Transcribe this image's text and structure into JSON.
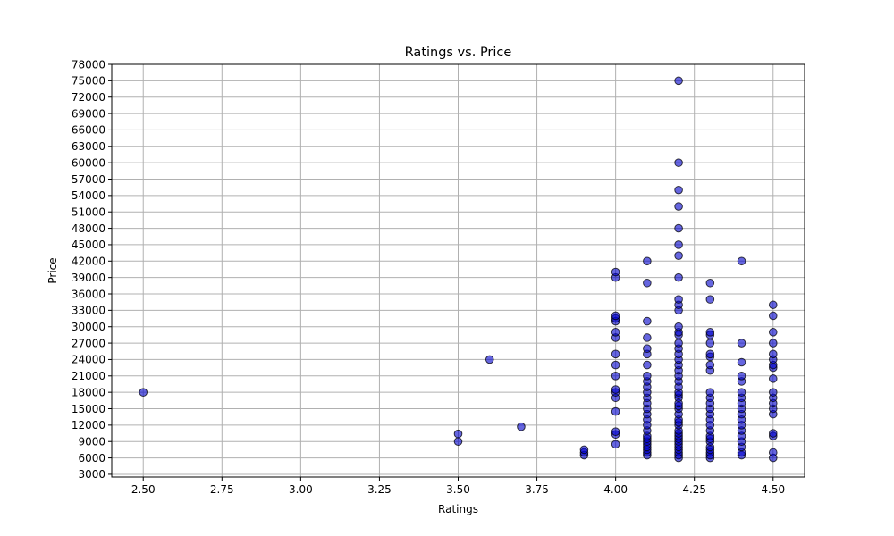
{
  "chart_data": {
    "type": "scatter",
    "title": "Ratings vs. Price",
    "xlabel": "Ratings",
    "ylabel": "Price",
    "xlim": [
      2.4,
      4.6
    ],
    "ylim": [
      2500,
      78000
    ],
    "xticks": [
      2.5,
      2.75,
      3.0,
      3.25,
      3.5,
      3.75,
      4.0,
      4.25,
      4.5
    ],
    "xtick_labels": [
      "2.50",
      "2.75",
      "3.00",
      "3.25",
      "3.50",
      "3.75",
      "4.00",
      "4.25",
      "4.50"
    ],
    "yticks": [
      3000,
      6000,
      9000,
      12000,
      15000,
      18000,
      21000,
      24000,
      27000,
      30000,
      33000,
      36000,
      39000,
      42000,
      45000,
      48000,
      51000,
      54000,
      57000,
      60000,
      63000,
      66000,
      69000,
      72000,
      75000,
      78000
    ],
    "grid": true,
    "marker_color": "#0000cc",
    "marker_edge_color": "#000000",
    "marker_alpha": 0.6,
    "series": [
      {
        "points": [
          [
            2.5,
            18000
          ],
          [
            3.5,
            9000
          ],
          [
            3.5,
            10400
          ],
          [
            3.6,
            24000
          ],
          [
            3.7,
            11700
          ],
          [
            3.9,
            6500
          ],
          [
            3.9,
            7000
          ],
          [
            3.9,
            7500
          ],
          [
            4.0,
            8500
          ],
          [
            4.0,
            10300
          ],
          [
            4.0,
            10800
          ],
          [
            4.0,
            14500
          ],
          [
            4.0,
            17000
          ],
          [
            4.0,
            18000
          ],
          [
            4.0,
            18500
          ],
          [
            4.0,
            21000
          ],
          [
            4.0,
            23000
          ],
          [
            4.0,
            25000
          ],
          [
            4.0,
            28000
          ],
          [
            4.0,
            29000
          ],
          [
            4.0,
            31000
          ],
          [
            4.0,
            31500
          ],
          [
            4.0,
            32000
          ],
          [
            4.0,
            39000
          ],
          [
            4.0,
            40000
          ],
          [
            4.1,
            6500
          ],
          [
            4.1,
            7000
          ],
          [
            4.1,
            7500
          ],
          [
            4.1,
            8000
          ],
          [
            4.1,
            8500
          ],
          [
            4.1,
            9000
          ],
          [
            4.1,
            9500
          ],
          [
            4.1,
            10000
          ],
          [
            4.1,
            11000
          ],
          [
            4.1,
            12000
          ],
          [
            4.1,
            13000
          ],
          [
            4.1,
            14000
          ],
          [
            4.1,
            15000
          ],
          [
            4.1,
            16000
          ],
          [
            4.1,
            17000
          ],
          [
            4.1,
            18000
          ],
          [
            4.1,
            19000
          ],
          [
            4.1,
            20000
          ],
          [
            4.1,
            21000
          ],
          [
            4.1,
            23000
          ],
          [
            4.1,
            25000
          ],
          [
            4.1,
            26000
          ],
          [
            4.1,
            28000
          ],
          [
            4.1,
            31000
          ],
          [
            4.1,
            38000
          ],
          [
            4.1,
            42000
          ],
          [
            4.2,
            6000
          ],
          [
            4.2,
            6500
          ],
          [
            4.2,
            7000
          ],
          [
            4.2,
            7500
          ],
          [
            4.2,
            8000
          ],
          [
            4.2,
            8500
          ],
          [
            4.2,
            9000
          ],
          [
            4.2,
            9500
          ],
          [
            4.2,
            10000
          ],
          [
            4.2,
            10500
          ],
          [
            4.2,
            11000
          ],
          [
            4.2,
            12000
          ],
          [
            4.2,
            12500
          ],
          [
            4.2,
            13000
          ],
          [
            4.2,
            14000
          ],
          [
            4.2,
            15000
          ],
          [
            4.2,
            15500
          ],
          [
            4.2,
            16000
          ],
          [
            4.2,
            17000
          ],
          [
            4.2,
            17500
          ],
          [
            4.2,
            18000
          ],
          [
            4.2,
            19000
          ],
          [
            4.2,
            20000
          ],
          [
            4.2,
            21000
          ],
          [
            4.2,
            22000
          ],
          [
            4.2,
            23000
          ],
          [
            4.2,
            24000
          ],
          [
            4.2,
            25000
          ],
          [
            4.2,
            26000
          ],
          [
            4.2,
            27000
          ],
          [
            4.2,
            28500
          ],
          [
            4.2,
            29000
          ],
          [
            4.2,
            30000
          ],
          [
            4.2,
            33000
          ],
          [
            4.2,
            34000
          ],
          [
            4.2,
            35000
          ],
          [
            4.2,
            39000
          ],
          [
            4.2,
            43000
          ],
          [
            4.2,
            45000
          ],
          [
            4.2,
            48000
          ],
          [
            4.2,
            52000
          ],
          [
            4.2,
            55000
          ],
          [
            4.2,
            60000
          ],
          [
            4.2,
            75000
          ],
          [
            4.3,
            6000
          ],
          [
            4.3,
            6500
          ],
          [
            4.3,
            7000
          ],
          [
            4.3,
            7500
          ],
          [
            4.3,
            8000
          ],
          [
            4.3,
            9000
          ],
          [
            4.3,
            9500
          ],
          [
            4.3,
            10000
          ],
          [
            4.3,
            11000
          ],
          [
            4.3,
            12000
          ],
          [
            4.3,
            13000
          ],
          [
            4.3,
            14000
          ],
          [
            4.3,
            15000
          ],
          [
            4.3,
            16000
          ],
          [
            4.3,
            17000
          ],
          [
            4.3,
            18000
          ],
          [
            4.3,
            22000
          ],
          [
            4.3,
            23000
          ],
          [
            4.3,
            24500
          ],
          [
            4.3,
            25000
          ],
          [
            4.3,
            27000
          ],
          [
            4.3,
            28500
          ],
          [
            4.3,
            29000
          ],
          [
            4.3,
            35000
          ],
          [
            4.3,
            38000
          ],
          [
            4.4,
            6500
          ],
          [
            4.4,
            7000
          ],
          [
            4.4,
            8000
          ],
          [
            4.4,
            9000
          ],
          [
            4.4,
            10000
          ],
          [
            4.4,
            11000
          ],
          [
            4.4,
            12000
          ],
          [
            4.4,
            13000
          ],
          [
            4.4,
            14000
          ],
          [
            4.4,
            15000
          ],
          [
            4.4,
            16000
          ],
          [
            4.4,
            17000
          ],
          [
            4.4,
            18000
          ],
          [
            4.4,
            20000
          ],
          [
            4.4,
            21000
          ],
          [
            4.4,
            23500
          ],
          [
            4.4,
            27000
          ],
          [
            4.4,
            42000
          ],
          [
            4.5,
            6000
          ],
          [
            4.5,
            7000
          ],
          [
            4.5,
            10000
          ],
          [
            4.5,
            10500
          ],
          [
            4.5,
            14000
          ],
          [
            4.5,
            15000
          ],
          [
            4.5,
            16000
          ],
          [
            4.5,
            17000
          ],
          [
            4.5,
            18000
          ],
          [
            4.5,
            20500
          ],
          [
            4.5,
            22500
          ],
          [
            4.5,
            23000
          ],
          [
            4.5,
            24000
          ],
          [
            4.5,
            25000
          ],
          [
            4.5,
            27000
          ],
          [
            4.5,
            29000
          ],
          [
            4.5,
            32000
          ],
          [
            4.5,
            34000
          ]
        ]
      }
    ]
  }
}
